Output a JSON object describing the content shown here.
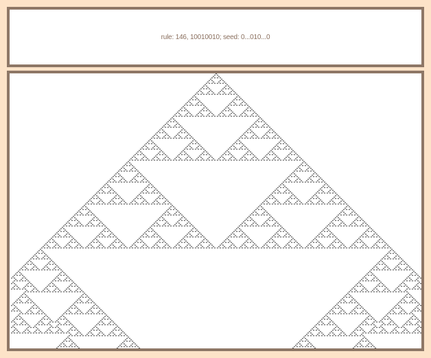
{
  "header": {
    "rule_label": "rule: 146, 10010010; seed: 0...010...0"
  },
  "automaton": {
    "rule_number": 146,
    "rule_binary": "10010010",
    "seed": "0...010...0",
    "cell_color": "#222222",
    "background_color": "#ffffff"
  },
  "colors": {
    "page_background": "#fde3c8",
    "panel_border": "#8e7766",
    "label_text": "#8a6f5e"
  }
}
